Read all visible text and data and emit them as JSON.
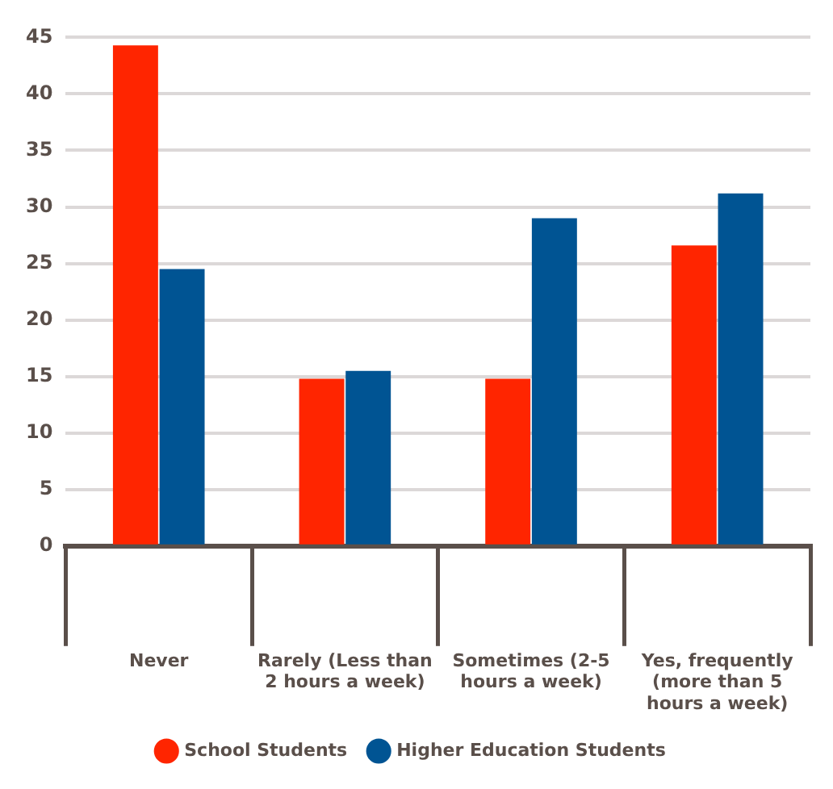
{
  "chart_data": {
    "type": "bar",
    "categories": [
      "Never",
      "Rarely (Less than 2 hours a week)",
      "Sometimes (2-5 hours a week)",
      "Yes, frequently (more than 5 hours a week)"
    ],
    "series": [
      {
        "name": "School Students",
        "color": "#ff2500",
        "values": [
          44.3,
          14.8,
          14.8,
          26.6
        ]
      },
      {
        "name": "Higher Education Students",
        "color": "#005493",
        "values": [
          24.5,
          15.5,
          29.0,
          31.2
        ]
      }
    ],
    "ylim": [
      0,
      45
    ],
    "yticks": [
      0,
      5,
      10,
      15,
      20,
      25,
      30,
      35,
      40,
      45
    ],
    "grid": "y",
    "legend": "bottom"
  }
}
